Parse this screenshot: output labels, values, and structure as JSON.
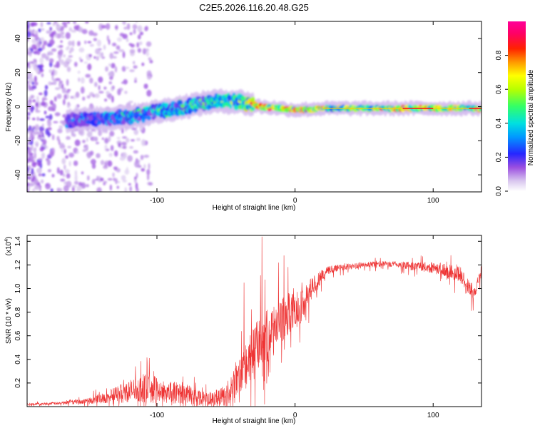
{
  "title": "C2E5.2026.116.20.48.G25",
  "chart_data": [
    {
      "type": "heatmap",
      "name": "spectrogram",
      "xlabel": "Height of straight line (km)",
      "ylabel": "Frequency (Hz)",
      "xlim": [
        -194,
        135
      ],
      "ylim": [
        -50,
        50
      ],
      "xticks": [
        -100,
        0,
        100
      ],
      "xtick_labels": [
        "-100",
        "0",
        "100"
      ],
      "yticks": [
        -40,
        -20,
        0,
        20,
        40
      ],
      "ytick_labels": [
        "-40",
        "-20",
        "0",
        "20",
        "40"
      ],
      "colorbar": {
        "label": "Normalized spectral amplitude",
        "range": [
          0,
          1
        ],
        "ticks": [
          0.0,
          0.2,
          0.4,
          0.6,
          0.8
        ],
        "tick_labels": [
          "0.0",
          "0.2",
          "0.4",
          "0.6",
          "0.8"
        ]
      },
      "ridge": [
        {
          "x": -160,
          "f": -8,
          "amp": 0.3
        },
        {
          "x": -140,
          "f": -7,
          "amp": 0.38
        },
        {
          "x": -120,
          "f": -6,
          "amp": 0.45
        },
        {
          "x": -100,
          "f": -3,
          "amp": 0.5
        },
        {
          "x": -80,
          "f": 0,
          "amp": 0.52
        },
        {
          "x": -60,
          "f": 3,
          "amp": 0.55
        },
        {
          "x": -40,
          "f": 3,
          "amp": 0.6
        },
        {
          "x": -25,
          "f": 0,
          "amp": 0.95
        },
        {
          "x": -10,
          "f": -1,
          "amp": 0.8
        },
        {
          "x": 0,
          "f": -2,
          "amp": 0.85
        },
        {
          "x": 20,
          "f": -1,
          "amp": 0.7
        },
        {
          "x": 50,
          "f": -1,
          "amp": 0.68
        },
        {
          "x": 80,
          "f": -1,
          "amp": 0.8
        },
        {
          "x": 100,
          "f": -1,
          "amp": 0.75
        },
        {
          "x": 120,
          "f": -1,
          "amp": 0.7
        },
        {
          "x": 135,
          "f": -1,
          "amp": 0.7
        }
      ]
    },
    {
      "type": "line",
      "name": "snr",
      "xlabel": "Height of straight line (km)",
      "ylabel": "SNR (10 * v/v)",
      "multiplier_label": "(x10",
      "multiplier_exp": "4",
      "multiplier_close": ")",
      "xlim": [
        -194,
        135
      ],
      "ylim": [
        0,
        1.45
      ],
      "xticks": [
        -100,
        0,
        100
      ],
      "xtick_labels": [
        "-100",
        "0",
        "100"
      ],
      "yticks": [
        0.2,
        0.4,
        0.6,
        0.8,
        1.0,
        1.2,
        1.4
      ],
      "ytick_labels": [
        "0.2",
        "0.4",
        "0.6",
        "0.8",
        "1.0",
        "1.2",
        "1.4"
      ],
      "color": "#ee3333",
      "envelope": {
        "x": [
          -194,
          -170,
          -150,
          -135,
          -120,
          -110,
          -100,
          -90,
          -80,
          -70,
          -60,
          -50,
          -45,
          -40,
          -35,
          -30,
          -25,
          -20,
          -15,
          -10,
          -5,
          0,
          5,
          10,
          15,
          20,
          25,
          30,
          40,
          50,
          60,
          70,
          80,
          90,
          100,
          110,
          120,
          125,
          130,
          135
        ],
        "y": [
          0.02,
          0.03,
          0.05,
          0.09,
          0.14,
          0.17,
          0.15,
          0.13,
          0.12,
          0.09,
          0.07,
          0.11,
          0.18,
          0.28,
          0.38,
          0.48,
          0.58,
          0.62,
          0.66,
          0.74,
          0.8,
          0.82,
          0.88,
          0.98,
          1.06,
          1.12,
          1.16,
          1.18,
          1.19,
          1.2,
          1.21,
          1.21,
          1.2,
          1.19,
          1.18,
          1.16,
          1.12,
          1.02,
          0.98,
          1.16
        ],
        "amp": [
          0.01,
          0.015,
          0.03,
          0.07,
          0.12,
          0.15,
          0.14,
          0.12,
          0.11,
          0.09,
          0.07,
          0.12,
          0.15,
          0.18,
          0.22,
          0.26,
          0.3,
          0.28,
          0.26,
          0.24,
          0.22,
          0.2,
          0.17,
          0.13,
          0.09,
          0.06,
          0.05,
          0.04,
          0.03,
          0.03,
          0.03,
          0.03,
          0.04,
          0.05,
          0.06,
          0.07,
          0.09,
          0.1,
          0.08,
          0.06
        ]
      },
      "spikes": [
        {
          "x": -24,
          "y": 1.44
        },
        {
          "x": -22,
          "y": 0.02
        },
        {
          "x": -37,
          "y": 1.05
        },
        {
          "x": -8,
          "y": 1.28
        },
        {
          "x": -12,
          "y": 1.22
        }
      ]
    }
  ]
}
